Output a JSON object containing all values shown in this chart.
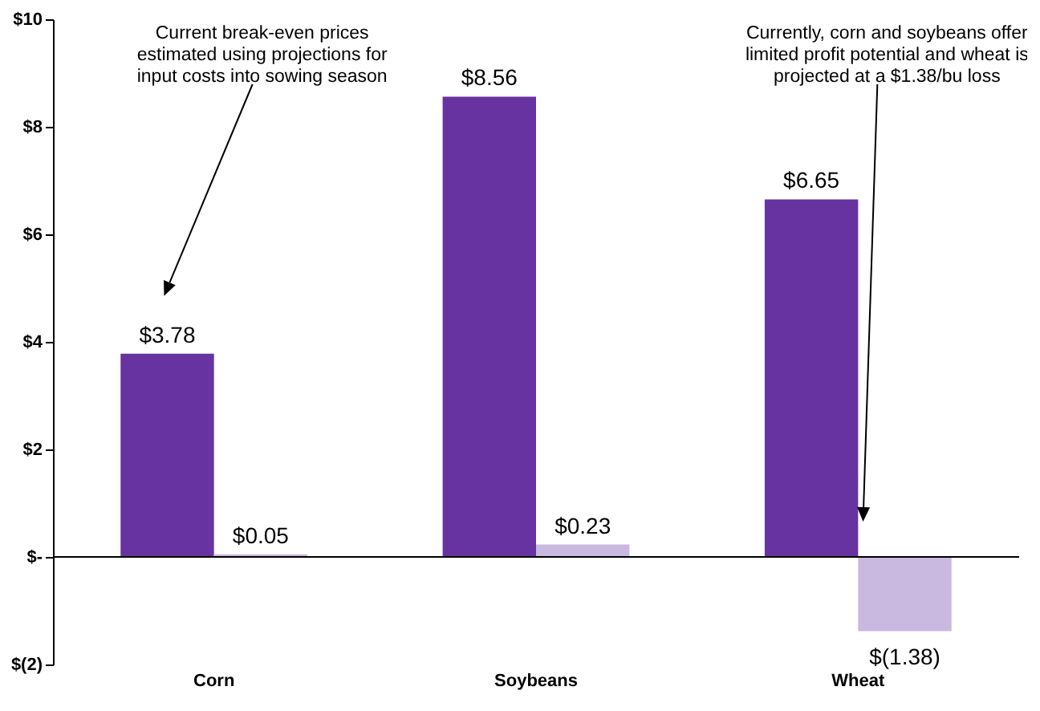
{
  "chart_data": {
    "type": "bar",
    "categories": [
      "Corn",
      "Soybeans",
      "Wheat"
    ],
    "series": [
      {
        "color": "#6633a0",
        "values": [
          3.78,
          8.56,
          6.65
        ],
        "value_labels": [
          "$3.78",
          "$8.56",
          "$6.65"
        ]
      },
      {
        "color": "#c9b8e0",
        "values": [
          0.05,
          0.23,
          -1.38
        ],
        "value_labels": [
          "$0.05",
          "$0.23",
          "$(1.38)"
        ]
      }
    ],
    "ylim": [
      -2,
      10
    ],
    "yticks": [
      {
        "value": -2,
        "label": "$(2)"
      },
      {
        "value": 0,
        "label": "$-"
      },
      {
        "value": 2,
        "label": "$2"
      },
      {
        "value": 4,
        "label": "$4"
      },
      {
        "value": 6,
        "label": "$6"
      },
      {
        "value": 8,
        "label": "$8"
      },
      {
        "value": 10,
        "label": "$10"
      }
    ],
    "annotations": [
      "Current break-even prices\nestimated using projections for\ninput costs into sowing season",
      "Currently, corn and soybeans offer\nlimited profit potential and wheat is\nprojected at a $1.38/bu loss"
    ]
  }
}
